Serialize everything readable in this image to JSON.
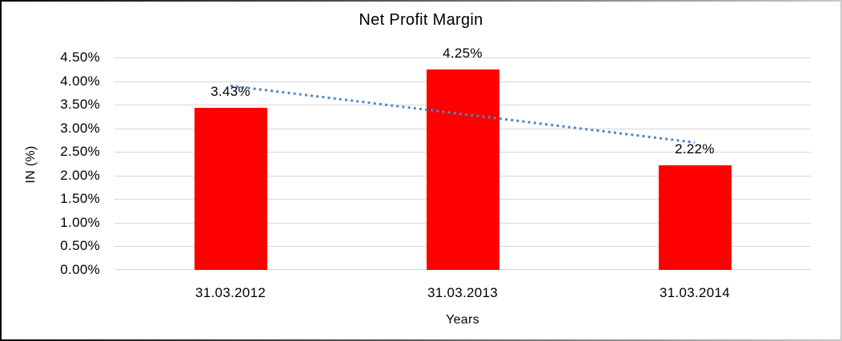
{
  "chart_data": {
    "type": "bar",
    "title": "Net Profit Margin",
    "xlabel": "Years",
    "ylabel": "IN (%)",
    "categories": [
      "31.03.2012",
      "31.03.2013",
      "31.03.2014"
    ],
    "values": [
      3.43,
      4.25,
      2.22
    ],
    "data_labels": [
      "3.43%",
      "4.25%",
      "2.22%"
    ],
    "series_name": "Net Profit Margin",
    "ylim": [
      0,
      4.5
    ],
    "y_tick_values": [
      0,
      0.5,
      1.0,
      1.5,
      2.0,
      2.5,
      3.0,
      3.5,
      4.0,
      4.5
    ],
    "y_tick_labels": [
      "0.00%",
      "0.50%",
      "1.00%",
      "1.50%",
      "2.00%",
      "2.50%",
      "3.00%",
      "3.50%",
      "4.00%",
      "4.50%"
    ],
    "grid": true,
    "legend": "none",
    "bar_color": "#ff0000",
    "gridline_color": "#d6d6d6",
    "text_color": "#000000",
    "background_color": "#ffffff",
    "trendline": {
      "type": "linear",
      "style": "dotted",
      "color": "#4e86c8",
      "start_value": 3.9,
      "end_value": 2.7
    }
  }
}
